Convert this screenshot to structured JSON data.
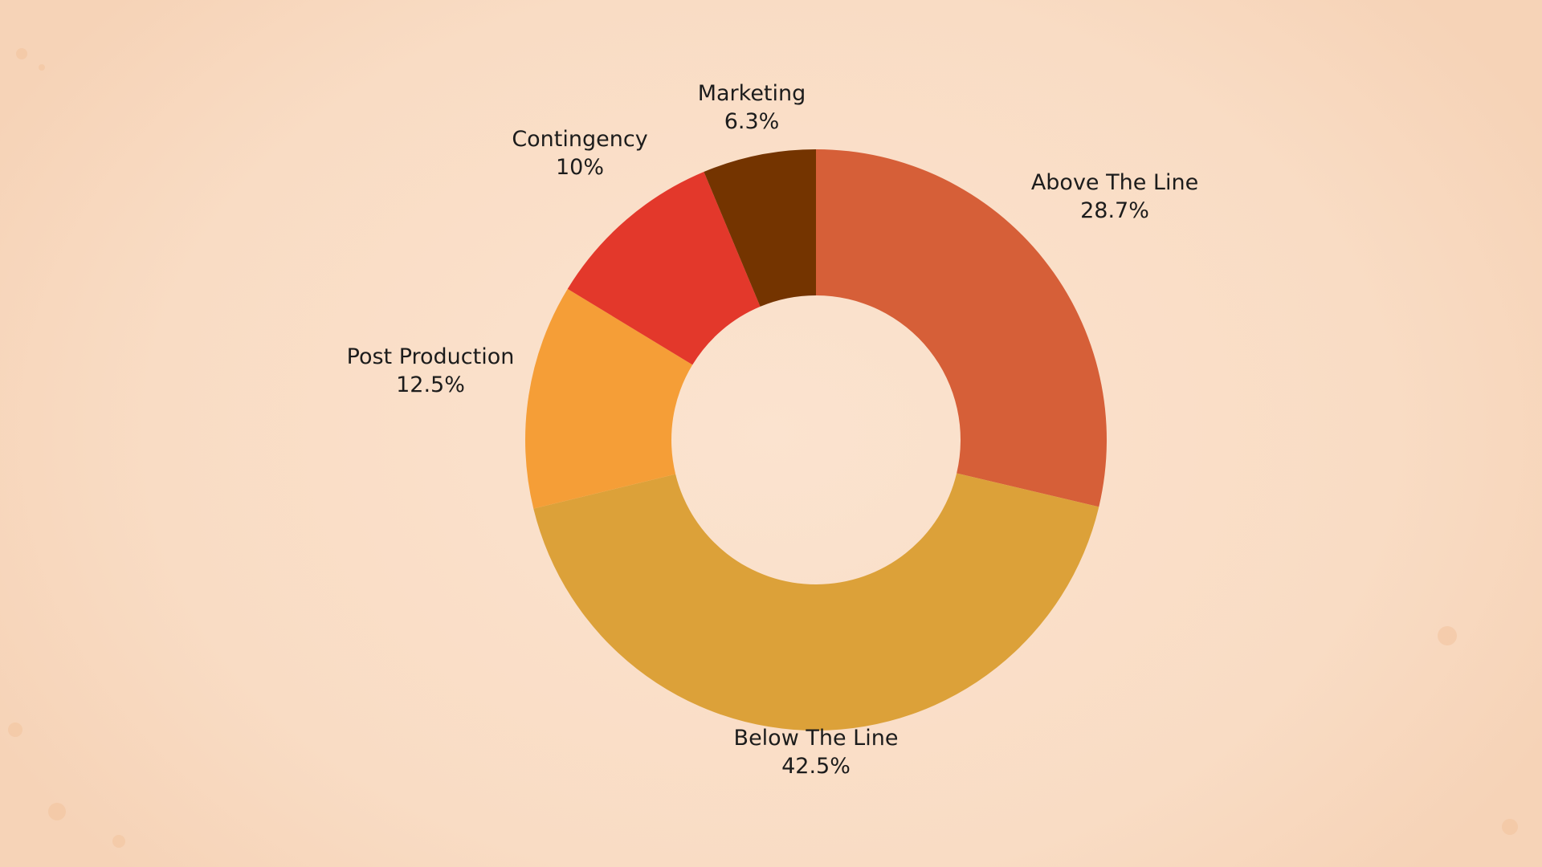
{
  "chart_data": {
    "type": "pie",
    "variant": "donut",
    "slices": [
      {
        "label": "Above The Line",
        "value_text": "28.7%",
        "value": 28.7,
        "color": "#d65f38"
      },
      {
        "label": "Below The Line",
        "value_text": "42.5%",
        "value": 42.5,
        "color": "#dca139"
      },
      {
        "label": "Post Production",
        "value_text": "12.5%",
        "value": 12.5,
        "color": "#f59e37"
      },
      {
        "label": "Contingency",
        "value_text": "10%",
        "value": 10,
        "color": "#e3382b"
      },
      {
        "label": "Marketing",
        "value_text": "6.3%",
        "value": 6.3,
        "color": "#743400"
      }
    ],
    "start_angle_deg": 0,
    "direction": "clockwise",
    "legend": "none",
    "labels": "outside"
  },
  "colors": {
    "background": "#f9dcc4",
    "label_text": "#1c1c1c"
  }
}
